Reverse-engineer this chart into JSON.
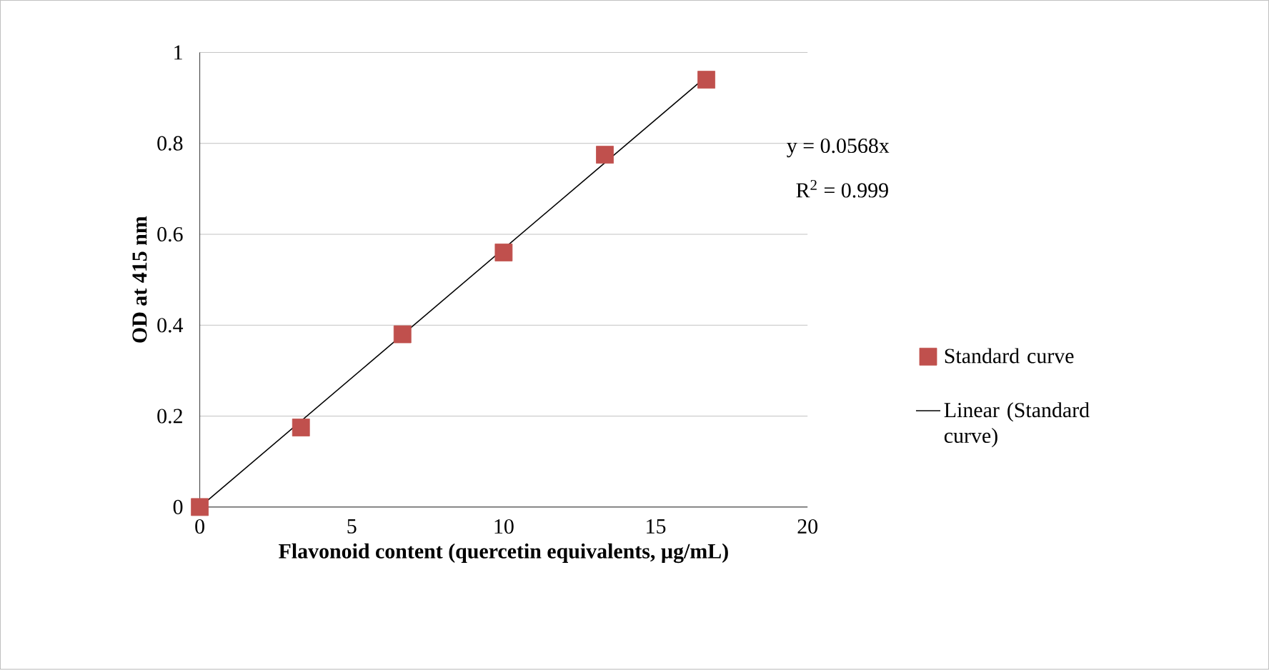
{
  "chart_data": {
    "type": "scatter",
    "xlabel": "Flavonoid content (quercetin equivalents, µg/mL)",
    "ylabel": "OD at 415 nm",
    "series": [
      {
        "name": "Standard curve",
        "color": "#c0504d",
        "marker": "square",
        "x": [
          0,
          3.33,
          6.67,
          10,
          13.33,
          16.67
        ],
        "values": [
          0,
          0.175,
          0.38,
          0.56,
          0.775,
          0.94
        ]
      },
      {
        "name": "Linear (Standard curve)",
        "type": "line",
        "color": "#000000",
        "line_style": "solid",
        "x": [
          0,
          16.67
        ],
        "values": [
          0,
          0.947
        ]
      }
    ],
    "xlim": [
      0,
      20
    ],
    "ylim": [
      0,
      1
    ],
    "xticks": [
      0,
      5,
      10,
      15,
      20
    ],
    "yticks": [
      0,
      0.2,
      0.4,
      0.6,
      0.8,
      1
    ],
    "grid": "y",
    "legend": "right",
    "annotations": [
      "y = 0.0568x",
      "R$^{2}$ = 0.999"
    ]
  }
}
